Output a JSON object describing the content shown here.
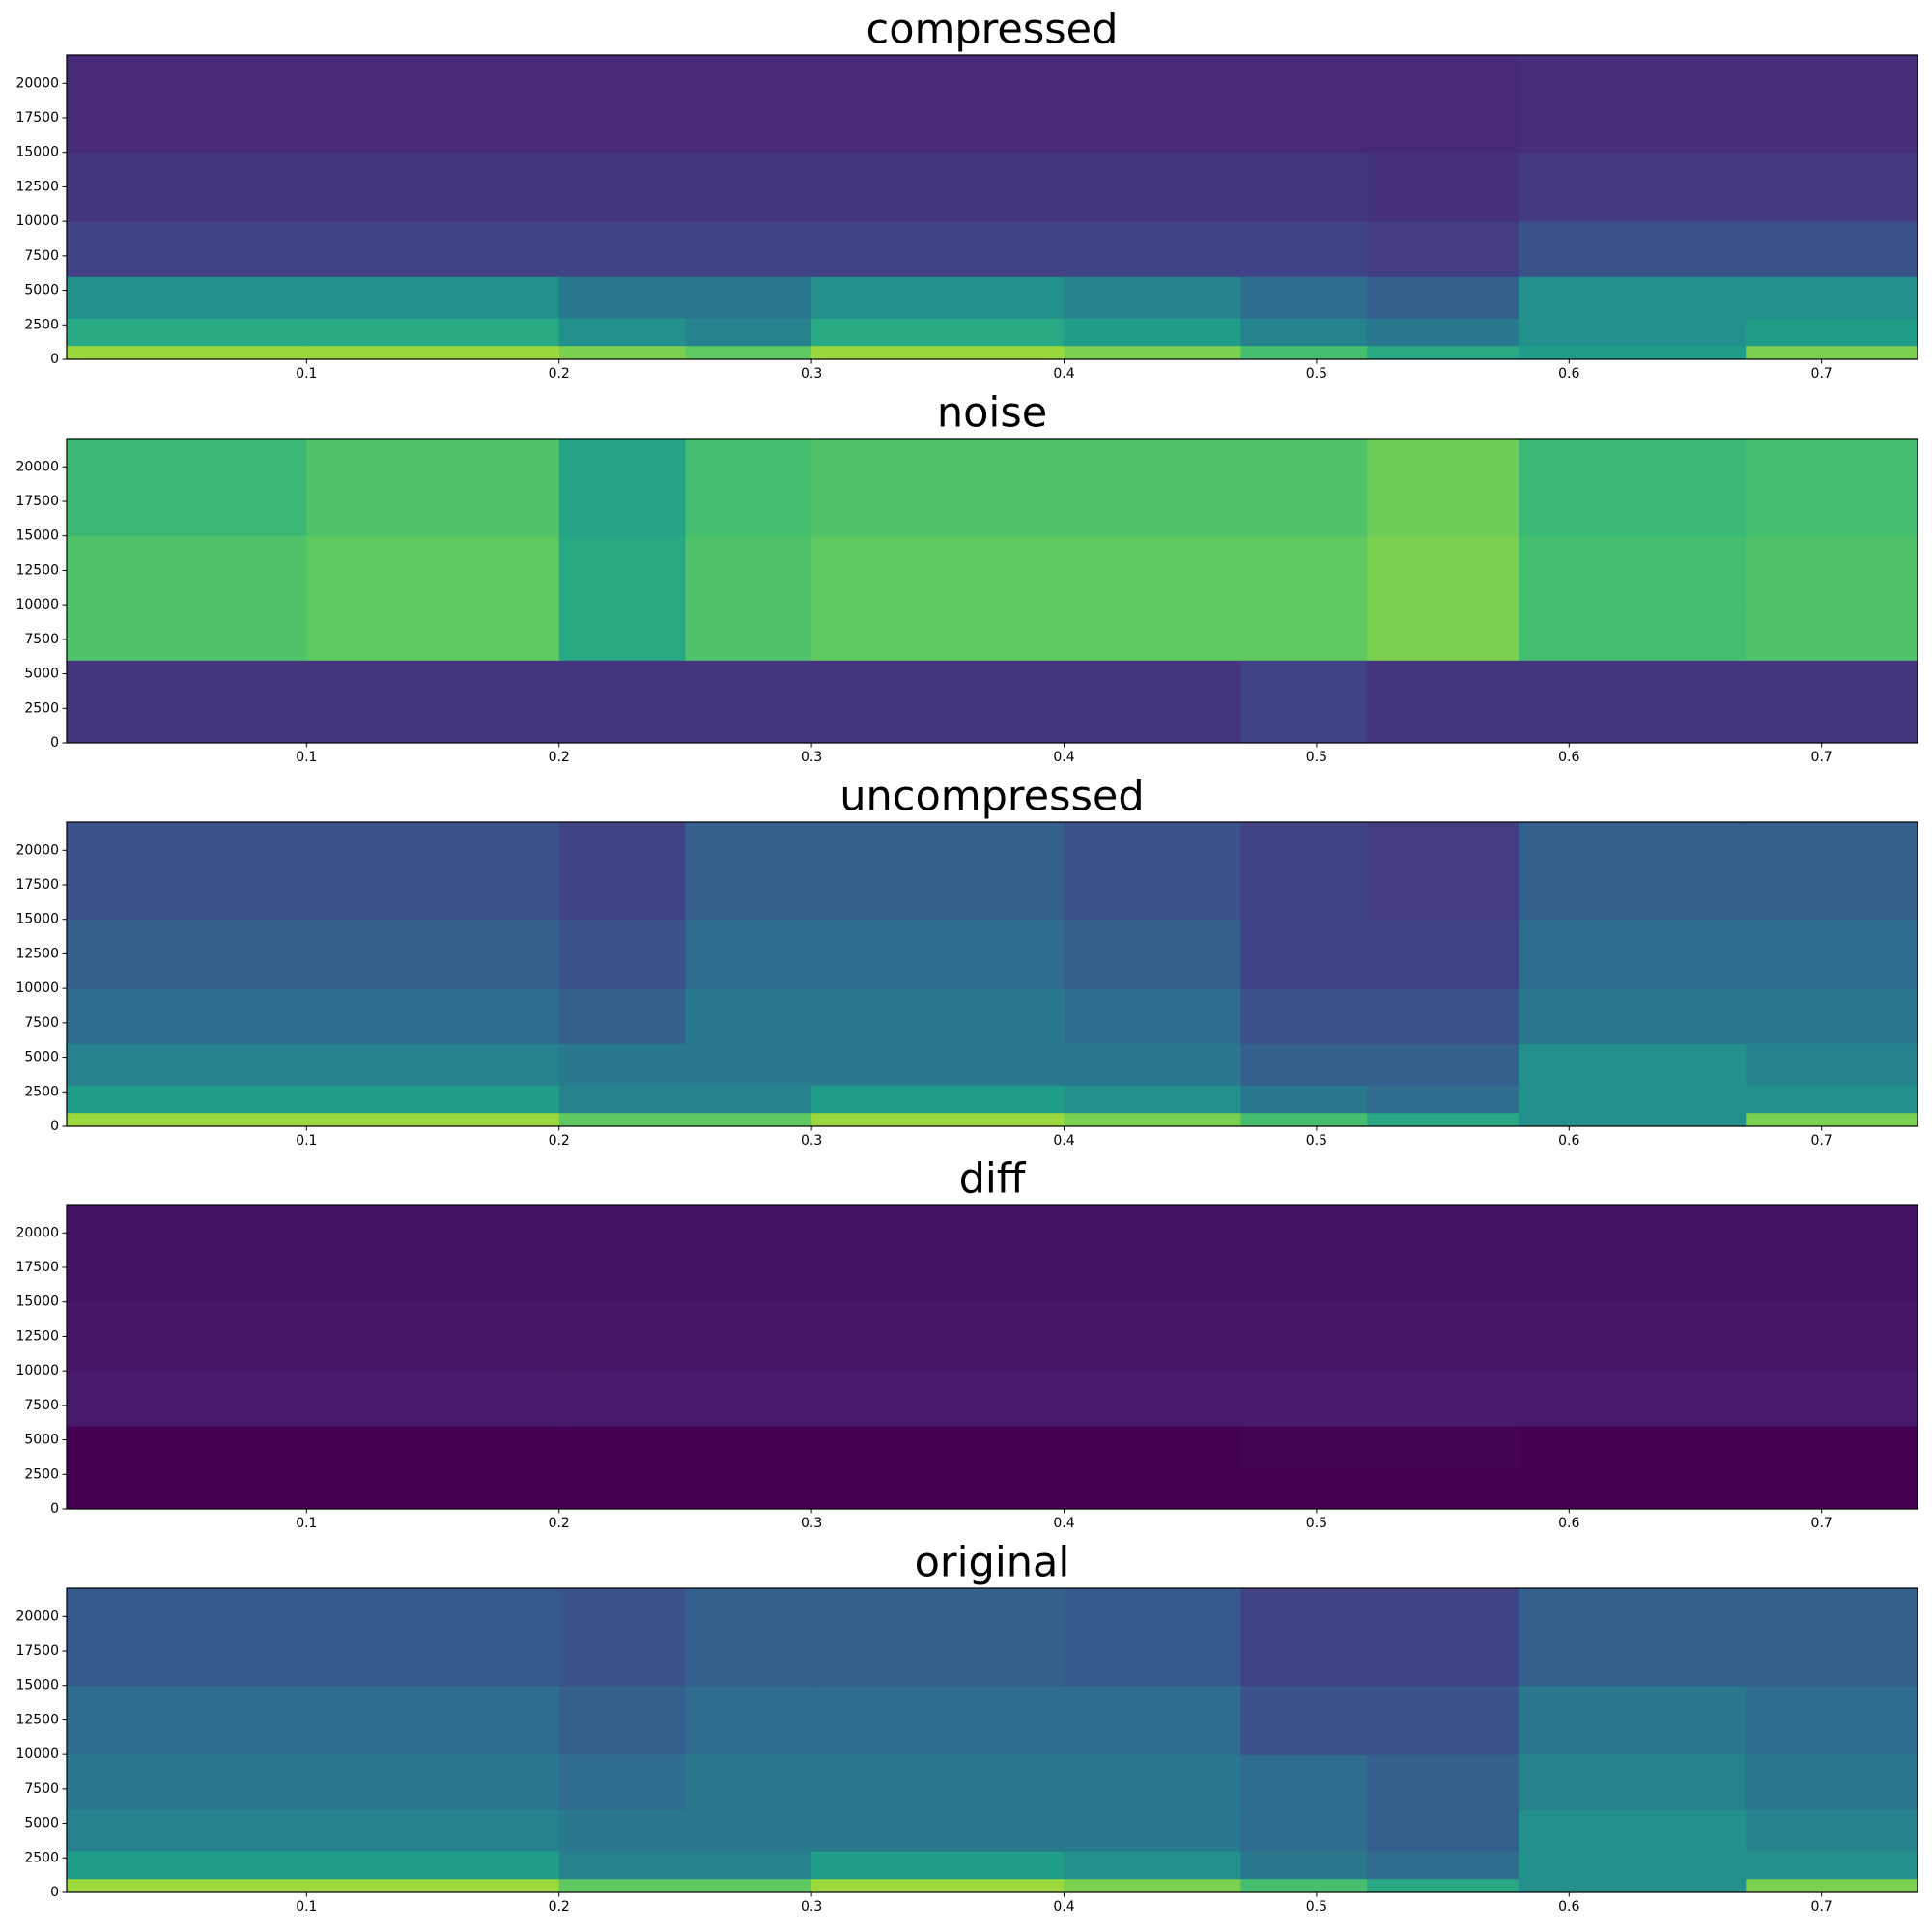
{
  "chart_data": [
    {
      "type": "spectrogram",
      "title": "compressed",
      "colormap": "viridis",
      "xlim": [
        0.005,
        0.738
      ],
      "ylim": [
        0,
        22050
      ],
      "xticks": [
        0.1,
        0.2,
        0.3,
        0.4,
        0.5,
        0.6,
        0.7
      ],
      "yticks": [
        0,
        2500,
        5000,
        7500,
        10000,
        12500,
        15000,
        17500,
        20000
      ],
      "xbins": [
        0.005,
        0.1,
        0.2,
        0.25,
        0.3,
        0.4,
        0.47,
        0.52,
        0.58,
        0.67,
        0.738
      ],
      "ybins": [
        0,
        1000,
        3000,
        6000,
        10000,
        15000,
        22050
      ],
      "values": [
        [
          0.85,
          0.85,
          0.8,
          0.75,
          0.85,
          0.8,
          0.7,
          0.6,
          0.55,
          0.8
        ],
        [
          0.6,
          0.6,
          0.5,
          0.45,
          0.6,
          0.55,
          0.45,
          0.4,
          0.5,
          0.55
        ],
        [
          0.5,
          0.5,
          0.4,
          0.4,
          0.5,
          0.45,
          0.35,
          0.3,
          0.5,
          0.5
        ],
        [
          0.2,
          0.2,
          0.2,
          0.2,
          0.2,
          0.2,
          0.2,
          0.18,
          0.25,
          0.25
        ],
        [
          0.15,
          0.15,
          0.15,
          0.15,
          0.15,
          0.15,
          0.15,
          0.14,
          0.17,
          0.17
        ],
        [
          0.12,
          0.12,
          0.12,
          0.12,
          0.12,
          0.12,
          0.12,
          0.12,
          0.13,
          0.13
        ]
      ]
    },
    {
      "type": "spectrogram",
      "title": "noise",
      "colormap": "viridis",
      "xlim": [
        0.005,
        0.738
      ],
      "ylim": [
        0,
        22050
      ],
      "xticks": [
        0.1,
        0.2,
        0.3,
        0.4,
        0.5,
        0.6,
        0.7
      ],
      "yticks": [
        0,
        2500,
        5000,
        7500,
        10000,
        12500,
        15000,
        17500,
        20000
      ],
      "xbins": [
        0.005,
        0.1,
        0.2,
        0.25,
        0.3,
        0.4,
        0.47,
        0.52,
        0.58,
        0.67,
        0.738
      ],
      "ybins": [
        0,
        1000,
        3000,
        6000,
        10000,
        15000,
        22050
      ],
      "values": [
        [
          0.15,
          0.15,
          0.15,
          0.15,
          0.15,
          0.15,
          0.2,
          0.15,
          0.15,
          0.15
        ],
        [
          0.15,
          0.15,
          0.15,
          0.15,
          0.15,
          0.15,
          0.2,
          0.15,
          0.15,
          0.15
        ],
        [
          0.15,
          0.15,
          0.15,
          0.15,
          0.15,
          0.15,
          0.2,
          0.15,
          0.15,
          0.15
        ],
        [
          0.72,
          0.75,
          0.6,
          0.72,
          0.75,
          0.75,
          0.75,
          0.8,
          0.7,
          0.72
        ],
        [
          0.72,
          0.75,
          0.6,
          0.72,
          0.75,
          0.75,
          0.75,
          0.8,
          0.7,
          0.72
        ],
        [
          0.68,
          0.72,
          0.58,
          0.7,
          0.72,
          0.72,
          0.72,
          0.78,
          0.68,
          0.7
        ]
      ]
    },
    {
      "type": "spectrogram",
      "title": "uncompressed",
      "colormap": "viridis",
      "xlim": [
        0.005,
        0.738
      ],
      "ylim": [
        0,
        22050
      ],
      "xticks": [
        0.1,
        0.2,
        0.3,
        0.4,
        0.5,
        0.6,
        0.7
      ],
      "yticks": [
        0,
        2500,
        5000,
        7500,
        10000,
        12500,
        15000,
        17500,
        20000
      ],
      "xbins": [
        0.005,
        0.1,
        0.2,
        0.25,
        0.3,
        0.4,
        0.47,
        0.52,
        0.58,
        0.67,
        0.738
      ],
      "ybins": [
        0,
        1000,
        3000,
        6000,
        10000,
        15000,
        22050
      ],
      "values": [
        [
          0.85,
          0.85,
          0.75,
          0.75,
          0.85,
          0.8,
          0.7,
          0.6,
          0.5,
          0.8
        ],
        [
          0.55,
          0.55,
          0.45,
          0.45,
          0.55,
          0.5,
          0.4,
          0.35,
          0.5,
          0.5
        ],
        [
          0.45,
          0.45,
          0.4,
          0.4,
          0.4,
          0.4,
          0.3,
          0.3,
          0.5,
          0.45
        ],
        [
          0.35,
          0.35,
          0.3,
          0.4,
          0.4,
          0.35,
          0.25,
          0.25,
          0.4,
          0.4
        ],
        [
          0.3,
          0.3,
          0.25,
          0.35,
          0.35,
          0.3,
          0.2,
          0.2,
          0.35,
          0.35
        ],
        [
          0.25,
          0.25,
          0.2,
          0.3,
          0.3,
          0.25,
          0.2,
          0.18,
          0.3,
          0.3
        ]
      ]
    },
    {
      "type": "spectrogram",
      "title": "diff",
      "colormap": "viridis",
      "xlim": [
        0.005,
        0.738
      ],
      "ylim": [
        0,
        22050
      ],
      "xticks": [
        0.1,
        0.2,
        0.3,
        0.4,
        0.5,
        0.6,
        0.7
      ],
      "yticks": [
        0,
        2500,
        5000,
        7500,
        10000,
        12500,
        15000,
        17500,
        20000
      ],
      "xbins": [
        0.005,
        0.1,
        0.2,
        0.25,
        0.3,
        0.4,
        0.47,
        0.52,
        0.58,
        0.67,
        0.738
      ],
      "ybins": [
        0,
        1000,
        3000,
        6000,
        10000,
        15000,
        22050
      ],
      "values": [
        [
          0,
          0,
          0,
          0,
          0,
          0,
          0,
          0,
          0,
          0
        ],
        [
          0,
          0,
          0,
          0,
          0,
          0,
          0,
          0,
          0,
          0
        ],
        [
          0,
          0,
          0,
          0,
          0,
          0,
          0.01,
          0.01,
          0,
          0
        ],
        [
          0.07,
          0.07,
          0.07,
          0.07,
          0.07,
          0.07,
          0.07,
          0.07,
          0.07,
          0.07
        ],
        [
          0.06,
          0.06,
          0.06,
          0.06,
          0.06,
          0.06,
          0.06,
          0.06,
          0.06,
          0.06
        ],
        [
          0.05,
          0.05,
          0.05,
          0.05,
          0.05,
          0.05,
          0.05,
          0.05,
          0.05,
          0.05
        ]
      ]
    },
    {
      "type": "spectrogram",
      "title": "original",
      "colormap": "viridis",
      "xlim": [
        0.005,
        0.738
      ],
      "ylim": [
        0,
        22050
      ],
      "xticks": [
        0.1,
        0.2,
        0.3,
        0.4,
        0.5,
        0.6,
        0.7
      ],
      "yticks": [
        0,
        2500,
        5000,
        7500,
        10000,
        12500,
        15000,
        17500,
        20000
      ],
      "xbins": [
        0.005,
        0.1,
        0.2,
        0.25,
        0.3,
        0.4,
        0.47,
        0.52,
        0.58,
        0.67,
        0.738
      ],
      "ybins": [
        0,
        1000,
        3000,
        6000,
        10000,
        15000,
        22050
      ],
      "values": [
        [
          0.85,
          0.85,
          0.75,
          0.75,
          0.85,
          0.8,
          0.7,
          0.6,
          0.5,
          0.8
        ],
        [
          0.55,
          0.55,
          0.45,
          0.45,
          0.55,
          0.5,
          0.4,
          0.35,
          0.5,
          0.5
        ],
        [
          0.45,
          0.45,
          0.4,
          0.4,
          0.4,
          0.4,
          0.35,
          0.3,
          0.5,
          0.45
        ],
        [
          0.4,
          0.4,
          0.35,
          0.4,
          0.4,
          0.4,
          0.35,
          0.3,
          0.45,
          0.4
        ],
        [
          0.35,
          0.35,
          0.3,
          0.35,
          0.35,
          0.35,
          0.25,
          0.25,
          0.4,
          0.35
        ],
        [
          0.28,
          0.28,
          0.25,
          0.3,
          0.3,
          0.28,
          0.2,
          0.2,
          0.3,
          0.3
        ]
      ]
    }
  ]
}
